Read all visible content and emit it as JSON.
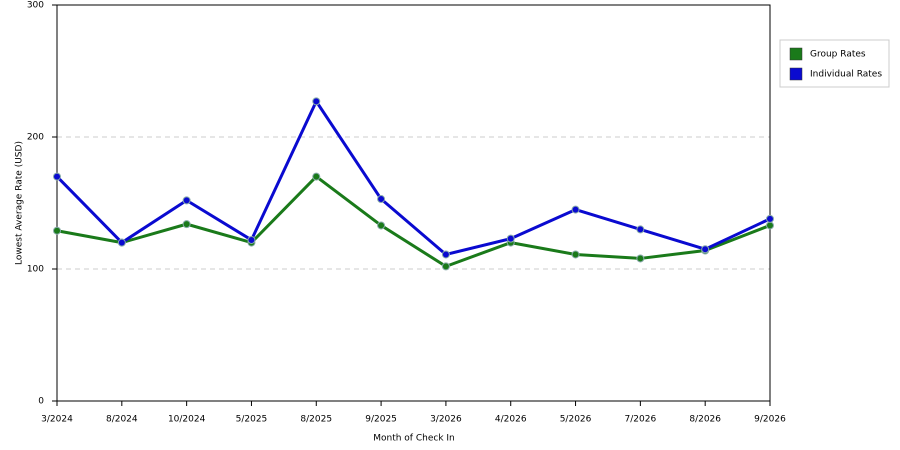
{
  "chart_data": {
    "type": "line",
    "x_label": "Month of Check In",
    "y_label": "Lowest Average Rate (USD)",
    "categories": [
      "3/2024",
      "8/2024",
      "10/2024",
      "5/2025",
      "8/2025",
      "9/2025",
      "3/2026",
      "4/2026",
      "5/2026",
      "7/2026",
      "8/2026",
      "9/2026"
    ],
    "series": [
      {
        "name": "Group Rates",
        "color": "#1a7a1a",
        "values": [
          129,
          120,
          134,
          120,
          170,
          133,
          102,
          120,
          111,
          108,
          114,
          133
        ]
      },
      {
        "name": "Individual Rates",
        "color": "#0a0ad0",
        "values": [
          170,
          120,
          152,
          122,
          227,
          153,
          111,
          123,
          145,
          130,
          115,
          138
        ]
      }
    ],
    "ylim": [
      0,
      300
    ],
    "yticks": [
      0,
      100,
      200,
      300
    ],
    "grid": true,
    "legend": "right"
  }
}
